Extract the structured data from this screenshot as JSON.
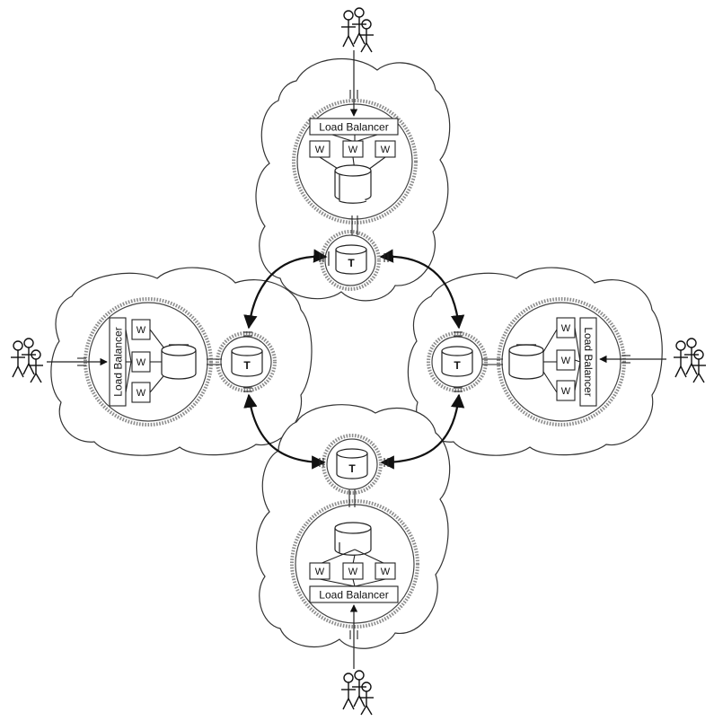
{
  "load_balancer_label": "Load Balancer",
  "worker_label": "W",
  "transaction_db_label": "T",
  "colors": {
    "stroke": "#222222",
    "zone_border": "#8d8d8d",
    "background": "#ffffff"
  },
  "icons": [
    "cloud",
    "load-balancer-box",
    "worker-box",
    "database-cylinder",
    "transaction-database",
    "user-group"
  ]
}
